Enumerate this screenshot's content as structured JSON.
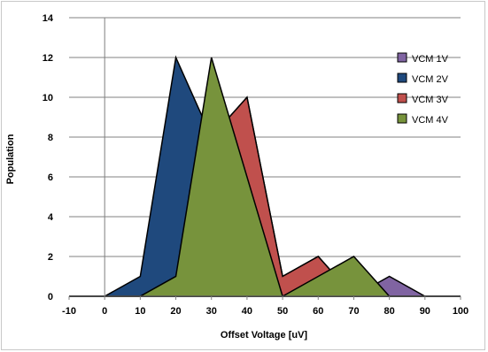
{
  "chart_data": {
    "type": "area",
    "title": "",
    "xlabel": "Offset Voltage [uV]",
    "ylabel": "Population",
    "xlim": [
      -10,
      100
    ],
    "ylim": [
      0,
      14
    ],
    "x_ticks": [
      -10,
      0,
      10,
      20,
      30,
      40,
      50,
      60,
      70,
      80,
      90,
      100
    ],
    "y_ticks": [
      0,
      2,
      4,
      6,
      8,
      10,
      12,
      14
    ],
    "x_tick_labels": [
      "-10",
      "0",
      "10",
      "20",
      "30",
      "40",
      "50",
      "60",
      "70",
      "80",
      "90",
      "100"
    ],
    "y_tick_labels": [
      "0",
      "2",
      "4",
      "6",
      "8",
      "10",
      "12",
      "14"
    ],
    "grid": "horizontal",
    "legend_position": "right",
    "x": [
      -10,
      0,
      10,
      20,
      30,
      40,
      50,
      60,
      70,
      80,
      90,
      100
    ],
    "series": [
      {
        "name": "VCM 1V",
        "color": "#8064a2",
        "values": [
          0,
          0,
          0,
          0,
          0,
          0,
          0,
          0,
          0,
          1,
          0,
          0
        ]
      },
      {
        "name": "VCM 2V",
        "color": "#1f497d",
        "values": [
          0,
          0,
          1,
          12,
          8,
          10,
          1,
          2,
          0,
          0,
          0,
          0
        ]
      },
      {
        "name": "VCM 3V",
        "color": "#c0504d",
        "values": [
          0,
          0,
          0,
          1,
          8,
          10,
          1,
          2,
          0,
          0,
          0,
          0
        ]
      },
      {
        "name": "VCM 4V",
        "color": "#77933c",
        "values": [
          0,
          0,
          0,
          1,
          12,
          6,
          0,
          1,
          2,
          0,
          0,
          0
        ]
      }
    ]
  }
}
